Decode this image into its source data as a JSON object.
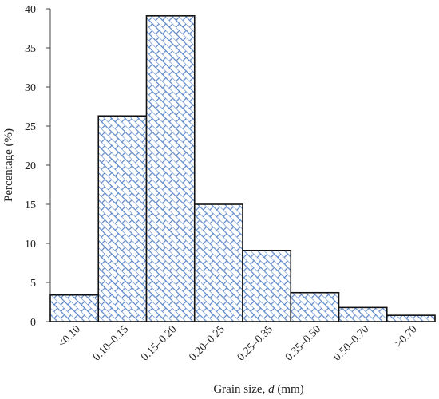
{
  "chart_data": {
    "type": "bar",
    "categories": [
      "<0.10",
      "0.10–0.15",
      "0.15–0.20",
      "0.20–0.25",
      "0.25–0.35",
      "0.35–0.50",
      "0.50–0.70",
      ">0.70"
    ],
    "values": [
      3.4,
      26.3,
      39.1,
      15.0,
      9.1,
      3.7,
      1.8,
      0.8
    ],
    "ylabel": "Percentage (%)",
    "xlabel_prefix": "Grain size, ",
    "xlabel_var": "d",
    "xlabel_suffix": " (mm)",
    "ylim": [
      0,
      40
    ],
    "yticks": [
      0,
      5,
      10,
      15,
      20,
      25,
      30,
      35,
      40
    ],
    "grid": false,
    "legend": "none",
    "bar_fill": "hatched-brick",
    "colors": {
      "hatch": "#5b86c8",
      "bar_edge": "#111111",
      "axis": "#444444"
    }
  }
}
